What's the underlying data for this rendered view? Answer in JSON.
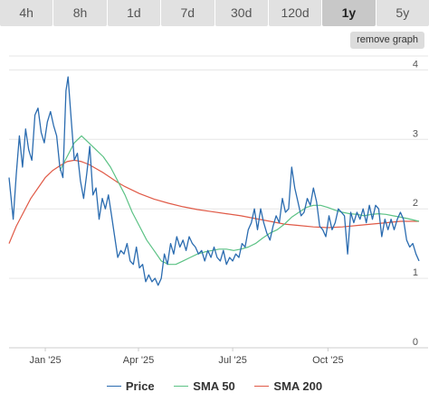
{
  "timeframes": {
    "tabs": [
      "4h",
      "8h",
      "1d",
      "7d",
      "30d",
      "120d",
      "1y",
      "5y"
    ],
    "active": "1y"
  },
  "remove_graph_label": "remove graph",
  "colors": {
    "price": "#2b6cb0",
    "sma50": "#5cc285",
    "sma200": "#e05a47",
    "grid": "#e6e6e6",
    "axis": "#cccccc"
  },
  "chart_data": {
    "type": "line",
    "title": "",
    "xlabel": "",
    "ylabel": "",
    "ylim": [
      0,
      4.2
    ],
    "y_ticks": [
      0,
      1,
      2,
      3,
      4
    ],
    "x_ticks": [
      {
        "label": "Jan '25",
        "date": "2025-01-01"
      },
      {
        "label": "Apr '25",
        "date": "2025-04-01"
      },
      {
        "label": "Jul '25",
        "date": "2025-07-01"
      },
      {
        "label": "Oct '25",
        "date": "2025-10-01"
      }
    ],
    "x_range": [
      "2024-11-27",
      "2025-12-28"
    ],
    "grid": true,
    "legend_position": "bottom",
    "series": [
      {
        "name": "Price",
        "color": "#2b6cb0",
        "points": [
          [
            "2024-11-27",
            2.45
          ],
          [
            "2024-12-01",
            1.85
          ],
          [
            "2024-12-04",
            2.5
          ],
          [
            "2024-12-07",
            3.05
          ],
          [
            "2024-12-10",
            2.6
          ],
          [
            "2024-12-13",
            3.15
          ],
          [
            "2024-12-16",
            2.85
          ],
          [
            "2024-12-19",
            2.7
          ],
          [
            "2024-12-22",
            3.35
          ],
          [
            "2024-12-25",
            3.45
          ],
          [
            "2024-12-28",
            3.1
          ],
          [
            "2024-12-31",
            2.95
          ],
          [
            "2025-01-03",
            3.25
          ],
          [
            "2025-01-06",
            3.4
          ],
          [
            "2025-01-09",
            3.2
          ],
          [
            "2025-01-12",
            3.05
          ],
          [
            "2025-01-15",
            2.6
          ],
          [
            "2025-01-18",
            2.45
          ],
          [
            "2025-01-21",
            3.7
          ],
          [
            "2025-01-23",
            3.9
          ],
          [
            "2025-01-26",
            3.3
          ],
          [
            "2025-01-29",
            2.7
          ],
          [
            "2025-02-01",
            2.8
          ],
          [
            "2025-02-04",
            2.4
          ],
          [
            "2025-02-07",
            2.15
          ],
          [
            "2025-02-10",
            2.5
          ],
          [
            "2025-02-13",
            2.9
          ],
          [
            "2025-02-16",
            2.2
          ],
          [
            "2025-02-19",
            2.3
          ],
          [
            "2025-02-22",
            1.85
          ],
          [
            "2025-02-25",
            2.15
          ],
          [
            "2025-02-28",
            2.0
          ],
          [
            "2025-03-03",
            2.2
          ],
          [
            "2025-03-06",
            1.9
          ],
          [
            "2025-03-09",
            1.6
          ],
          [
            "2025-03-12",
            1.3
          ],
          [
            "2025-03-15",
            1.4
          ],
          [
            "2025-03-18",
            1.35
          ],
          [
            "2025-03-21",
            1.5
          ],
          [
            "2025-03-24",
            1.25
          ],
          [
            "2025-03-27",
            1.2
          ],
          [
            "2025-03-30",
            1.45
          ],
          [
            "2025-04-02",
            1.15
          ],
          [
            "2025-04-05",
            1.2
          ],
          [
            "2025-04-08",
            0.95
          ],
          [
            "2025-04-11",
            1.05
          ],
          [
            "2025-04-14",
            0.95
          ],
          [
            "2025-04-17",
            1.0
          ],
          [
            "2025-04-20",
            0.9
          ],
          [
            "2025-04-23",
            1.0
          ],
          [
            "2025-04-26",
            1.35
          ],
          [
            "2025-04-29",
            1.2
          ],
          [
            "2025-05-02",
            1.5
          ],
          [
            "2025-05-05",
            1.35
          ],
          [
            "2025-05-08",
            1.6
          ],
          [
            "2025-05-11",
            1.45
          ],
          [
            "2025-05-14",
            1.55
          ],
          [
            "2025-05-17",
            1.4
          ],
          [
            "2025-05-20",
            1.6
          ],
          [
            "2025-05-23",
            1.5
          ],
          [
            "2025-05-26",
            1.45
          ],
          [
            "2025-05-29",
            1.35
          ],
          [
            "2025-06-01",
            1.4
          ],
          [
            "2025-06-04",
            1.25
          ],
          [
            "2025-06-07",
            1.4
          ],
          [
            "2025-06-10",
            1.3
          ],
          [
            "2025-06-13",
            1.45
          ],
          [
            "2025-06-16",
            1.3
          ],
          [
            "2025-06-19",
            1.25
          ],
          [
            "2025-06-22",
            1.4
          ],
          [
            "2025-06-25",
            1.2
          ],
          [
            "2025-06-28",
            1.3
          ],
          [
            "2025-07-01",
            1.25
          ],
          [
            "2025-07-04",
            1.35
          ],
          [
            "2025-07-07",
            1.3
          ],
          [
            "2025-07-10",
            1.5
          ],
          [
            "2025-07-13",
            1.45
          ],
          [
            "2025-07-16",
            1.7
          ],
          [
            "2025-07-19",
            1.8
          ],
          [
            "2025-07-22",
            2.0
          ],
          [
            "2025-07-25",
            1.7
          ],
          [
            "2025-07-28",
            2.0
          ],
          [
            "2025-07-31",
            1.8
          ],
          [
            "2025-08-03",
            1.65
          ],
          [
            "2025-08-06",
            1.55
          ],
          [
            "2025-08-09",
            1.75
          ],
          [
            "2025-08-12",
            1.9
          ],
          [
            "2025-08-15",
            1.8
          ],
          [
            "2025-08-18",
            2.15
          ],
          [
            "2025-08-21",
            1.95
          ],
          [
            "2025-08-24",
            2.0
          ],
          [
            "2025-08-27",
            2.6
          ],
          [
            "2025-08-30",
            2.3
          ],
          [
            "2025-09-02",
            2.1
          ],
          [
            "2025-09-05",
            1.9
          ],
          [
            "2025-09-08",
            1.95
          ],
          [
            "2025-09-11",
            2.15
          ],
          [
            "2025-09-14",
            2.05
          ],
          [
            "2025-09-17",
            2.3
          ],
          [
            "2025-09-20",
            2.1
          ],
          [
            "2025-09-23",
            1.75
          ],
          [
            "2025-09-26",
            1.7
          ],
          [
            "2025-09-29",
            1.6
          ],
          [
            "2025-10-02",
            1.9
          ],
          [
            "2025-10-05",
            1.7
          ],
          [
            "2025-10-08",
            1.8
          ],
          [
            "2025-10-11",
            2.0
          ],
          [
            "2025-10-14",
            1.95
          ],
          [
            "2025-10-17",
            1.9
          ],
          [
            "2025-10-20",
            1.35
          ],
          [
            "2025-10-23",
            1.95
          ],
          [
            "2025-10-26",
            1.8
          ],
          [
            "2025-10-29",
            1.95
          ],
          [
            "2025-11-01",
            1.85
          ],
          [
            "2025-11-04",
            2.0
          ],
          [
            "2025-11-07",
            1.8
          ],
          [
            "2025-11-10",
            2.05
          ],
          [
            "2025-11-13",
            1.85
          ],
          [
            "2025-11-16",
            2.05
          ],
          [
            "2025-11-19",
            2.0
          ],
          [
            "2025-11-22",
            1.6
          ],
          [
            "2025-11-25",
            1.85
          ],
          [
            "2025-11-28",
            1.7
          ],
          [
            "2025-12-01",
            1.85
          ],
          [
            "2025-12-04",
            1.7
          ],
          [
            "2025-12-07",
            1.85
          ],
          [
            "2025-12-10",
            1.95
          ],
          [
            "2025-12-13",
            1.85
          ],
          [
            "2025-12-16",
            1.55
          ],
          [
            "2025-12-19",
            1.45
          ],
          [
            "2025-12-22",
            1.5
          ],
          [
            "2025-12-25",
            1.35
          ],
          [
            "2025-12-28",
            1.25
          ]
        ]
      },
      {
        "name": "SMA 50",
        "color": "#5cc285",
        "points": [
          [
            "2025-01-15",
            2.55
          ],
          [
            "2025-01-22",
            2.75
          ],
          [
            "2025-01-29",
            2.95
          ],
          [
            "2025-02-05",
            3.05
          ],
          [
            "2025-02-12",
            2.95
          ],
          [
            "2025-02-19",
            2.85
          ],
          [
            "2025-02-26",
            2.75
          ],
          [
            "2025-03-05",
            2.6
          ],
          [
            "2025-03-12",
            2.4
          ],
          [
            "2025-03-19",
            2.2
          ],
          [
            "2025-03-26",
            1.95
          ],
          [
            "2025-04-02",
            1.75
          ],
          [
            "2025-04-09",
            1.55
          ],
          [
            "2025-04-16",
            1.4
          ],
          [
            "2025-04-23",
            1.25
          ],
          [
            "2025-04-30",
            1.2
          ],
          [
            "2025-05-07",
            1.2
          ],
          [
            "2025-05-14",
            1.25
          ],
          [
            "2025-05-21",
            1.3
          ],
          [
            "2025-05-28",
            1.35
          ],
          [
            "2025-06-04",
            1.38
          ],
          [
            "2025-06-11",
            1.4
          ],
          [
            "2025-06-18",
            1.42
          ],
          [
            "2025-06-25",
            1.42
          ],
          [
            "2025-07-02",
            1.4
          ],
          [
            "2025-07-09",
            1.42
          ],
          [
            "2025-07-16",
            1.45
          ],
          [
            "2025-07-23",
            1.5
          ],
          [
            "2025-07-30",
            1.58
          ],
          [
            "2025-08-06",
            1.65
          ],
          [
            "2025-08-13",
            1.7
          ],
          [
            "2025-08-20",
            1.78
          ],
          [
            "2025-08-27",
            1.88
          ],
          [
            "2025-09-03",
            1.95
          ],
          [
            "2025-09-10",
            2.02
          ],
          [
            "2025-09-17",
            2.05
          ],
          [
            "2025-09-24",
            2.05
          ],
          [
            "2025-10-01",
            2.02
          ],
          [
            "2025-10-08",
            1.98
          ],
          [
            "2025-10-15",
            1.95
          ],
          [
            "2025-10-22",
            1.93
          ],
          [
            "2025-10-29",
            1.92
          ],
          [
            "2025-11-05",
            1.9
          ],
          [
            "2025-11-12",
            1.92
          ],
          [
            "2025-11-19",
            1.93
          ],
          [
            "2025-11-26",
            1.92
          ],
          [
            "2025-12-03",
            1.9
          ],
          [
            "2025-12-10",
            1.88
          ],
          [
            "2025-12-17",
            1.86
          ],
          [
            "2025-12-28",
            1.82
          ]
        ]
      },
      {
        "name": "SMA 200",
        "color": "#e05a47",
        "points": [
          [
            "2024-11-27",
            1.5
          ],
          [
            "2024-12-04",
            1.75
          ],
          [
            "2024-12-11",
            1.95
          ],
          [
            "2024-12-18",
            2.15
          ],
          [
            "2024-12-25",
            2.3
          ],
          [
            "2025-01-01",
            2.45
          ],
          [
            "2025-01-08",
            2.55
          ],
          [
            "2025-01-15",
            2.62
          ],
          [
            "2025-01-22",
            2.68
          ],
          [
            "2025-01-29",
            2.7
          ],
          [
            "2025-02-05",
            2.68
          ],
          [
            "2025-02-12",
            2.64
          ],
          [
            "2025-02-19",
            2.58
          ],
          [
            "2025-02-26",
            2.52
          ],
          [
            "2025-03-05",
            2.45
          ],
          [
            "2025-03-12",
            2.38
          ],
          [
            "2025-03-19",
            2.32
          ],
          [
            "2025-03-26",
            2.27
          ],
          [
            "2025-04-02",
            2.22
          ],
          [
            "2025-04-16",
            2.14
          ],
          [
            "2025-04-30",
            2.08
          ],
          [
            "2025-05-14",
            2.03
          ],
          [
            "2025-05-28",
            1.99
          ],
          [
            "2025-06-11",
            1.96
          ],
          [
            "2025-06-25",
            1.93
          ],
          [
            "2025-07-09",
            1.9
          ],
          [
            "2025-07-23",
            1.86
          ],
          [
            "2025-08-06",
            1.82
          ],
          [
            "2025-08-20",
            1.78
          ],
          [
            "2025-09-03",
            1.76
          ],
          [
            "2025-09-17",
            1.74
          ],
          [
            "2025-10-01",
            1.73
          ],
          [
            "2025-10-15",
            1.74
          ],
          [
            "2025-10-29",
            1.76
          ],
          [
            "2025-11-12",
            1.78
          ],
          [
            "2025-11-26",
            1.8
          ],
          [
            "2025-12-10",
            1.82
          ],
          [
            "2025-12-28",
            1.82
          ]
        ]
      }
    ]
  }
}
